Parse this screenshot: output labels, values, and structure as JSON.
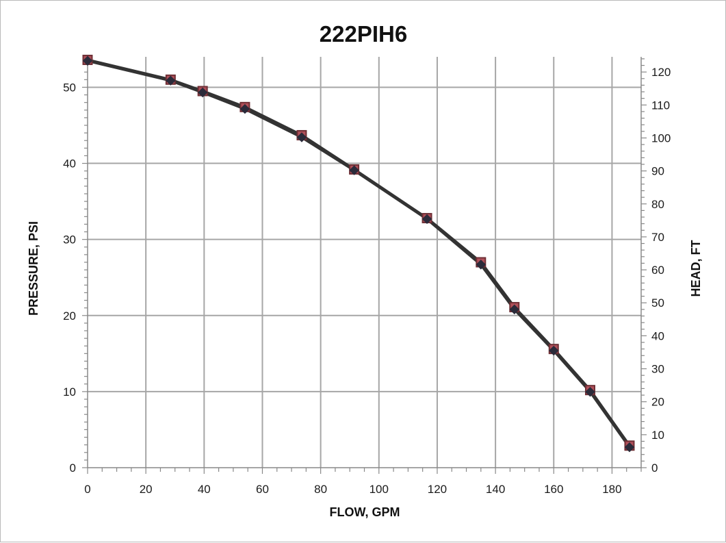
{
  "chart_data": {
    "type": "line",
    "title": "222PIH6",
    "xlabel": "FLOW, GPM",
    "ylabel": "PRESSURE, PSI",
    "y2label": "HEAD, FT",
    "xlim": [
      0,
      190
    ],
    "ylim": [
      0,
      54
    ],
    "y2lim": [
      0,
      124.6
    ],
    "x_ticks": [
      0,
      20,
      40,
      60,
      80,
      100,
      120,
      140,
      160,
      180
    ],
    "y_ticks": [
      0,
      10,
      20,
      30,
      40,
      50
    ],
    "y2_ticks": [
      0,
      10,
      20,
      30,
      40,
      50,
      60,
      70,
      80,
      90,
      100,
      110,
      120
    ],
    "grid": true,
    "x": [
      0,
      28.5,
      39.5,
      54,
      73.5,
      91.5,
      116.5,
      135,
      146.5,
      160,
      172.5,
      186
    ],
    "series": [
      {
        "name": "",
        "axis": "left",
        "marker": "square",
        "values": [
          53.6,
          51.0,
          49.5,
          47.4,
          43.7,
          39.2,
          32.8,
          27.0,
          21.1,
          15.6,
          10.2,
          2.9
        ]
      },
      {
        "name": "",
        "axis": "right",
        "marker": "diamond",
        "values": [
          123.4,
          117.4,
          113.8,
          108.8,
          100.2,
          90.2,
          75.4,
          61.6,
          48.0,
          35.5,
          23.0,
          6.2
        ]
      }
    ],
    "colors": {
      "line": "#333333",
      "square_fill": "#b0505a",
      "square_stroke": "#6f2f35",
      "diamond": "#2b2b3a",
      "grid": "#a6a6a6",
      "axis": "#888888"
    }
  }
}
